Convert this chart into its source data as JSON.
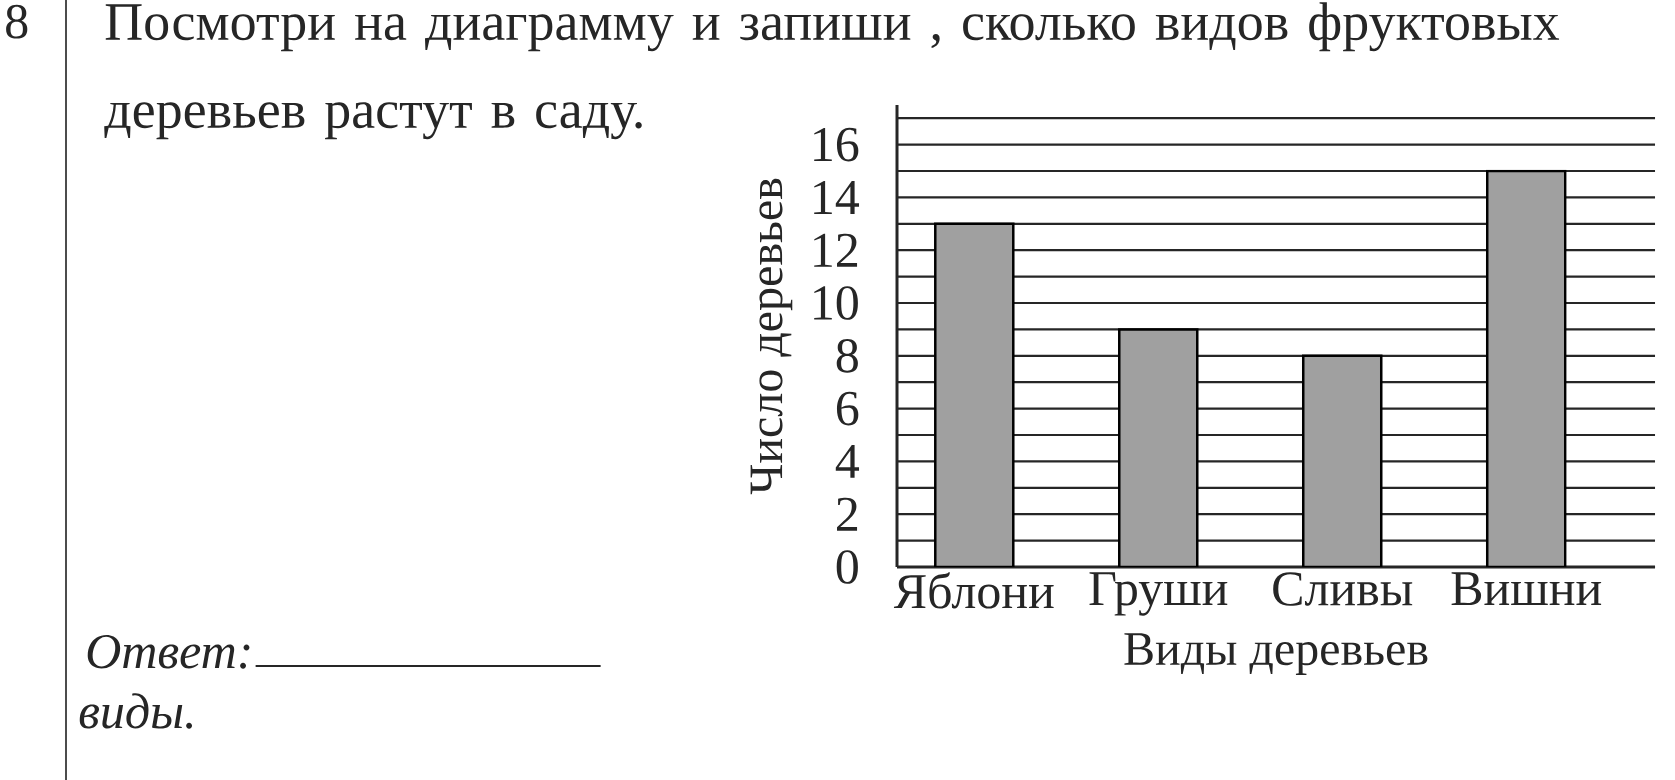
{
  "chart_data": {
    "type": "bar",
    "title": "Посмотри на диаграмму и запиши , сколько видов фруктовых деревьев растут в саду.",
    "xlabel": "Виды деревьев",
    "ylabel": "Число деревьев",
    "categories": [
      "Яблони",
      "Груши",
      "Сливы",
      "Вишни"
    ],
    "values": [
      13,
      9,
      8,
      15
    ],
    "color": "#a0a0a0",
    "ylim": [
      0,
      17.5
    ],
    "yticks": [
      0,
      {
        "value": 1,
        "label": null
      },
      2,
      {
        "value": 3,
        "label": null
      },
      4,
      {
        "value": 5,
        "label": null
      },
      6,
      {
        "value": 7,
        "label": null
      },
      8,
      {
        "value": 9,
        "label": null
      },
      10,
      {
        "value": 11,
        "label": null
      },
      12,
      {
        "value": 13,
        "label": null
      },
      14,
      {
        "value": 15,
        "label": null
      },
      16,
      {
        "value": 17,
        "label": null
      }
    ],
    "grid": "y",
    "annotations": [
      "8",
      "Ответ:",
      "виды."
    ]
  }
}
